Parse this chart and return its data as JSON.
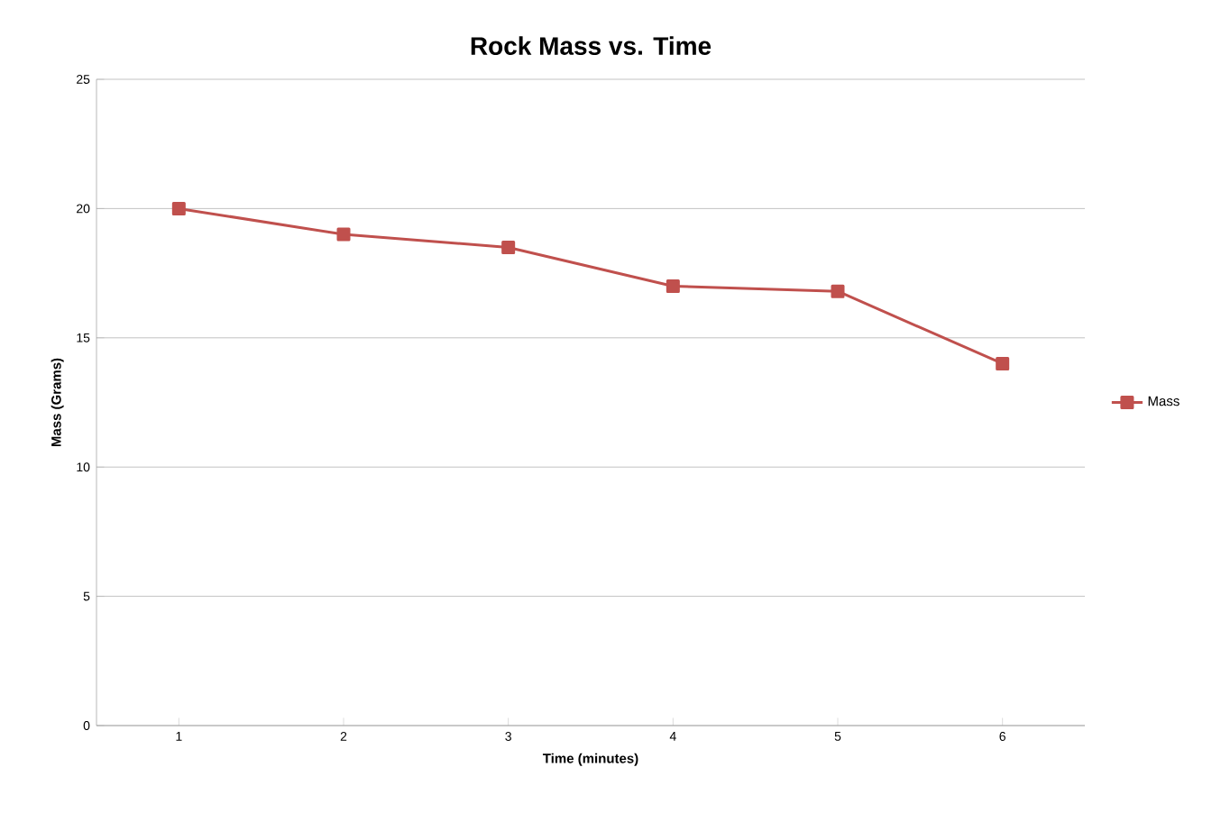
{
  "chart_data": {
    "type": "line",
    "title": "Rock Mass vs. Time",
    "xlabel": "Time (minutes)",
    "ylabel": "Mass (Grams)",
    "categories": [
      "1",
      "2",
      "3",
      "4",
      "5",
      "6"
    ],
    "series": [
      {
        "name": "Mass",
        "color": "#c0504d",
        "values": [
          20,
          19,
          18.5,
          17,
          16.8,
          14
        ]
      }
    ],
    "ylim": [
      0,
      25
    ],
    "yticks": [
      0,
      5,
      10,
      15,
      20,
      25
    ],
    "grid": "y",
    "legend": "right",
    "marker": "square",
    "line_style": "solid"
  }
}
